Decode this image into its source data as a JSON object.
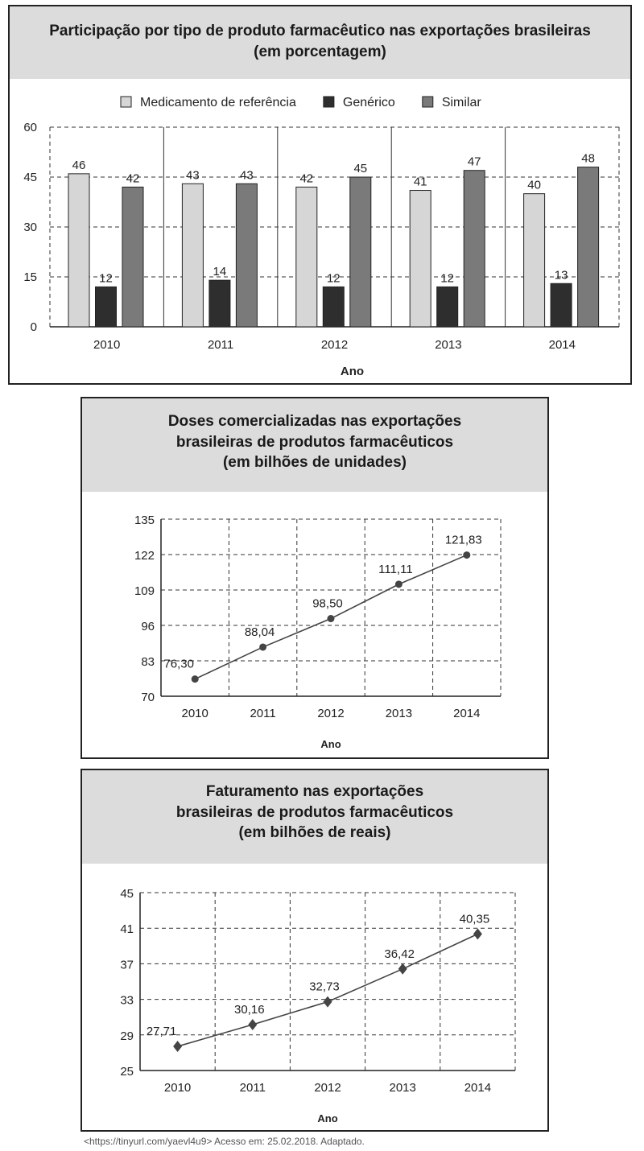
{
  "chart_data": [
    {
      "type": "bar",
      "title": "Participação por tipo de produto farmacêutico nas exportações brasileiras",
      "subtitle": "(em porcentagem)",
      "xlabel": "Ano",
      "ylabel": "",
      "categories": [
        "2010",
        "2011",
        "2012",
        "2013",
        "2014"
      ],
      "series": [
        {
          "name": "Medicamento de referência",
          "color": "#d6d6d6",
          "values": [
            46,
            43,
            42,
            41,
            40
          ]
        },
        {
          "name": "Genérico",
          "color": "#2e2e2e",
          "values": [
            12,
            14,
            12,
            12,
            13
          ]
        },
        {
          "name": "Similar",
          "color": "#7a7a7a",
          "values": [
            42,
            43,
            45,
            47,
            48
          ]
        }
      ],
      "ylim": [
        0,
        60
      ],
      "yticks": [
        "0",
        "15",
        "30",
        "45",
        "60"
      ],
      "legend_position": "top",
      "grid": true
    },
    {
      "type": "line",
      "title_lines": [
        "Doses comercializadas nas exportações",
        "brasileiras de produtos farmacêuticos",
        "(em bilhões de unidades)"
      ],
      "xlabel": "Ano",
      "ylabel": "",
      "x": [
        "2010",
        "2011",
        "2012",
        "2013",
        "2014"
      ],
      "values": [
        76.3,
        88.04,
        98.5,
        111.11,
        121.83
      ],
      "value_labels": [
        "76,30",
        "88,04",
        "98,50",
        "111,11",
        "121,83"
      ],
      "ylim": [
        70,
        135
      ],
      "yticks": [
        "70",
        "83",
        "96",
        "109",
        "122",
        "135"
      ],
      "marker": "circle",
      "grid": true
    },
    {
      "type": "line",
      "title_lines": [
        "Faturamento nas exportações",
        "brasileiras de produtos farmacêuticos",
        "(em bilhões de reais)"
      ],
      "xlabel": "Ano",
      "ylabel": "",
      "x": [
        "2010",
        "2011",
        "2012",
        "2013",
        "2014"
      ],
      "values": [
        27.71,
        30.16,
        32.73,
        36.42,
        40.35
      ],
      "value_labels": [
        "27,71",
        "30,16",
        "32,73",
        "36,42",
        "40,35"
      ],
      "ylim": [
        25,
        45
      ],
      "yticks": [
        "25",
        "29",
        "33",
        "37",
        "41",
        "45"
      ],
      "marker": "diamond",
      "grid": true
    }
  ],
  "source": "<https://tinyurl.com/yaevl4u9> Acesso em: 25.02.2018. Adaptado."
}
